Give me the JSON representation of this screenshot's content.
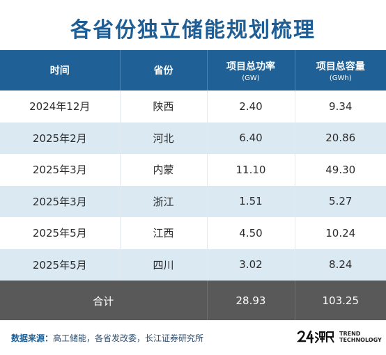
{
  "title": "各省份独立储能规划梳理",
  "table": {
    "headers": {
      "time": "时间",
      "province": "省份",
      "power": "项目总功率",
      "power_unit": "(GW)",
      "capacity": "项目总容量",
      "capacity_unit": "(GWh)"
    },
    "rows": [
      {
        "time": "2024年12月",
        "province": "陕西",
        "power": "2.40",
        "capacity": "9.34"
      },
      {
        "time": "2025年2月",
        "province": "河北",
        "power": "6.40",
        "capacity": "20.86"
      },
      {
        "time": "2025年3月",
        "province": "内蒙",
        "power": "11.10",
        "capacity": "49.30"
      },
      {
        "time": "2025年3月",
        "province": "浙江",
        "power": "1.51",
        "capacity": "5.27"
      },
      {
        "time": "2025年5月",
        "province": "江西",
        "power": "4.50",
        "capacity": "10.24"
      },
      {
        "time": "2025年5月",
        "province": "四川",
        "power": "3.02",
        "capacity": "8.24"
      }
    ],
    "total": {
      "label": "合计",
      "power": "28.93",
      "capacity": "103.25"
    }
  },
  "footer": {
    "source_label": "数据来源：",
    "source_text": "高工储能，各省发改委，长江证券研究所",
    "logo_line1": "TREND",
    "logo_line2": "TECHNOLOGY"
  },
  "colors": {
    "title": "#1f5e95",
    "header_bg": "#1f6196",
    "row_alt_bg": "#dbe9f3",
    "total_bg": "#595959"
  }
}
